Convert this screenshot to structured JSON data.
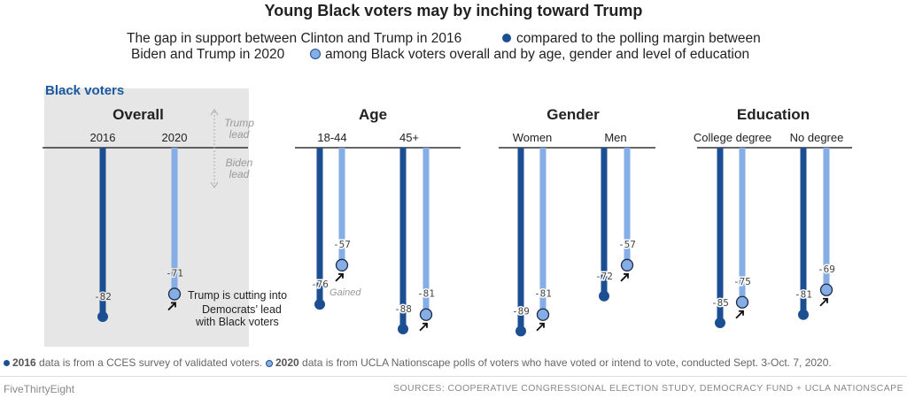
{
  "title": "Young Black voters may by inching toward Trump",
  "subtitle_line1_pre": "The gap in support between Clinton and Trump in 2016",
  "subtitle_line1_post": "compared to the polling margin between",
  "subtitle_line2_pre": "Biden and Trump in 2020",
  "subtitle_line2_post": "among Black voters overall and by age, gender and level of education",
  "section_label": "Black voters",
  "direction_labels": {
    "trump": "Trump\nlead",
    "biden": "Biden\nlead"
  },
  "annotation": [
    "Trump is cutting into",
    "Democrats’ lead",
    "with Black voters"
  ],
  "gained_label": "Gained",
  "notes": {
    "y2016_label": "2016",
    "y2016_text": "data is from a CCES survey of validated voters.",
    "y2020_label": "2020",
    "y2020_text": "data is from UCLA Nationscape polls of voters who have voted or intend to vote, conducted Sept. 3-Oct. 7, 2020."
  },
  "footer": {
    "brand": "FiveThirtyEight",
    "sources": "SOURCES: COOPERATIVE CONGRESSIONAL ELECTION STUDY, DEMOCRACY FUND + UCLA NATIONSCAPE"
  },
  "colors": {
    "y2016": "#1b4f91",
    "y2020": "#86aee6",
    "panel_bg": "#e6e6e6",
    "section_label": "#1b5aa0"
  },
  "chart_data": {
    "type": "bar",
    "ylim": [
      -90,
      0
    ],
    "series_names": [
      "2016",
      "2020"
    ],
    "groups": [
      {
        "title": "Overall",
        "categories": [
          {
            "label": "",
            "y2016": -82,
            "y2020": -71
          }
        ],
        "col_labels": [
          "2016",
          "2020"
        ]
      },
      {
        "title": "Age",
        "categories": [
          {
            "label": "18-44",
            "y2016": -76,
            "y2020": -57
          },
          {
            "label": "45+",
            "y2016": -88,
            "y2020": -81
          }
        ]
      },
      {
        "title": "Gender",
        "categories": [
          {
            "label": "Women",
            "y2016": -89,
            "y2020": -81
          },
          {
            "label": "Men",
            "y2016": -72,
            "y2020": -57
          }
        ]
      },
      {
        "title": "Education",
        "categories": [
          {
            "label": "College degree",
            "y2016": -85,
            "y2020": -75
          },
          {
            "label": "No degree",
            "y2016": -81,
            "y2020": -69
          }
        ]
      }
    ]
  }
}
